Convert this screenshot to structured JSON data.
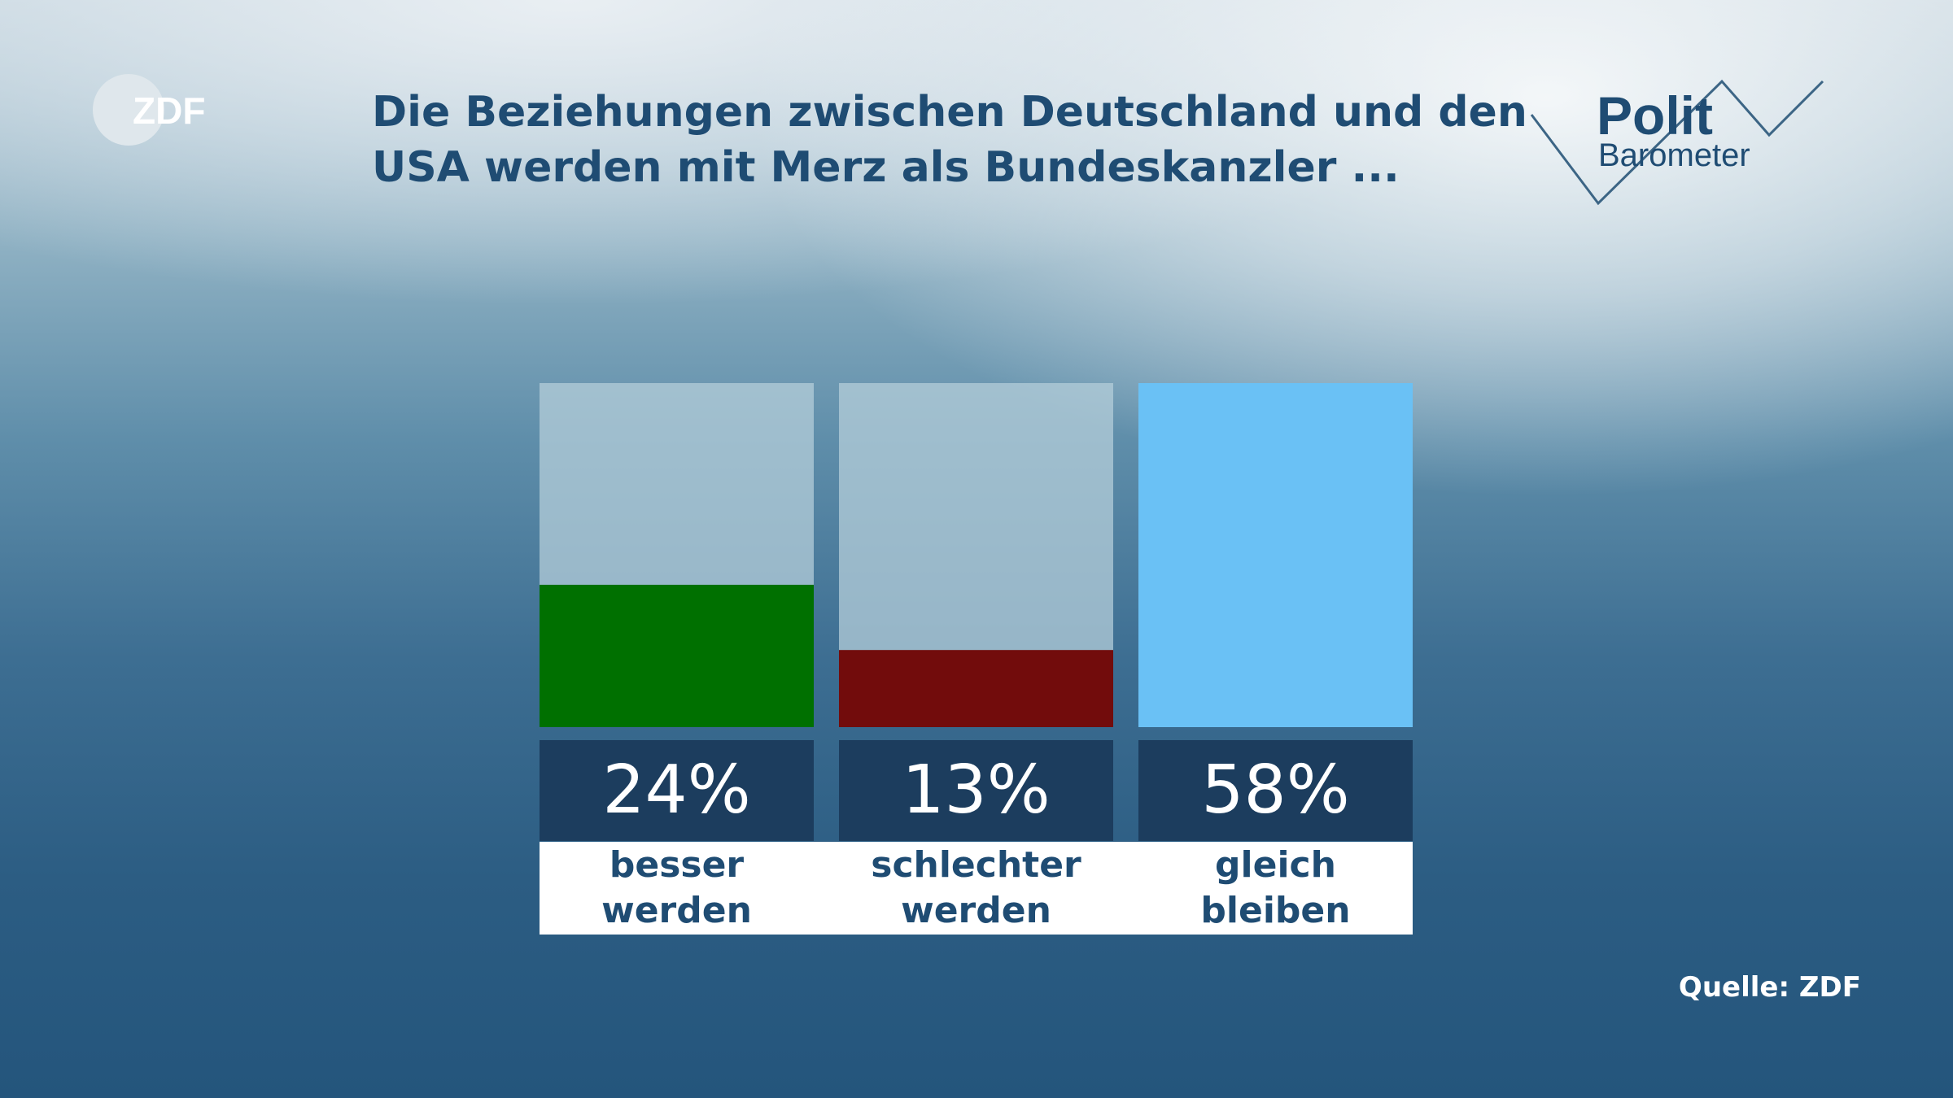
{
  "branding": {
    "broadcaster_logo": "ZDF",
    "program_logo_top": "Polit",
    "program_logo_bottom": "Barometer"
  },
  "source": "Quelle: ZDF",
  "chart_data": {
    "type": "bar",
    "title_lines": [
      "Die Beziehungen zwischen Deutschland und den",
      "USA werden mit Merz als Bundeskanzler ..."
    ],
    "ylim": [
      0,
      58
    ],
    "unit": "%",
    "categories": [
      {
        "lines": [
          "besser",
          "werden"
        ],
        "value": 24,
        "color": "#007000"
      },
      {
        "lines": [
          "schlechter",
          "werden"
        ],
        "value": 13,
        "color": "#720c0c"
      },
      {
        "lines": [
          "gleich",
          "bleiben"
        ],
        "value": 58,
        "color": "#6ac1f5"
      }
    ],
    "track_color": "#b4cdd9",
    "value_box_color": "#1c3d5e"
  }
}
